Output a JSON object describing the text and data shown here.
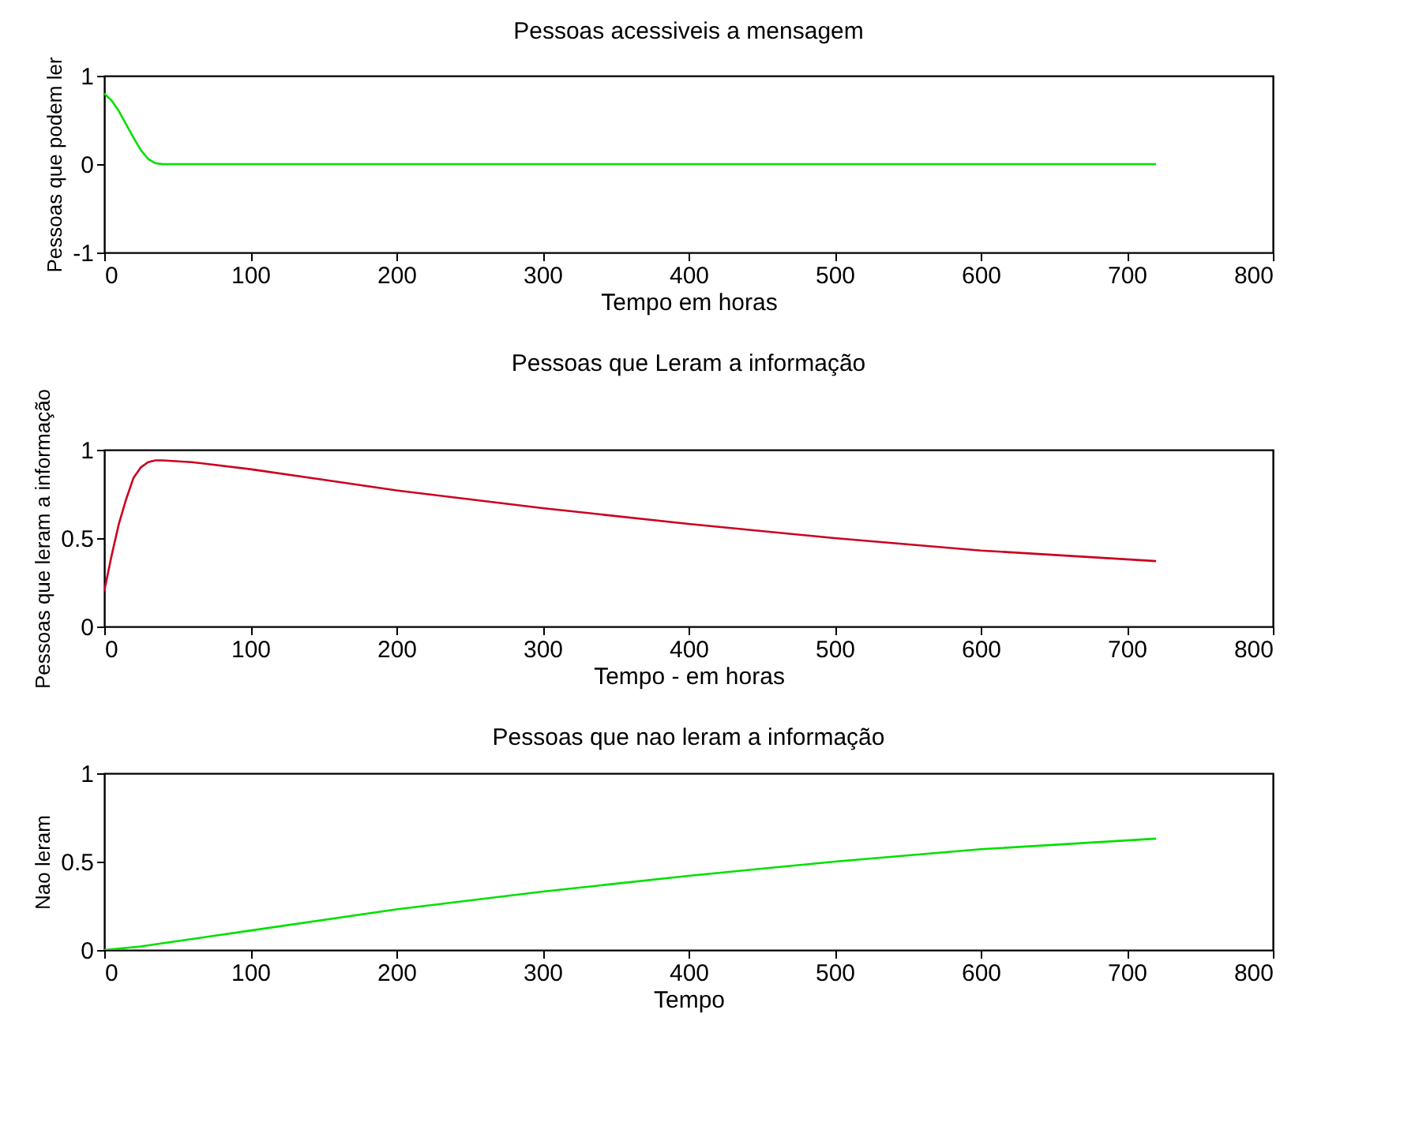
{
  "chart_data": [
    {
      "type": "line",
      "title": "Pessoas acessiveis a mensagem",
      "xlabel": "Tempo em horas",
      "ylabel": "Pessoas que podem ler",
      "xlim": [
        0,
        800
      ],
      "xticks": [
        0,
        100,
        200,
        300,
        400,
        500,
        600,
        700,
        800
      ],
      "ylim": [
        -1,
        1
      ],
      "yticks": [
        -1,
        0,
        1
      ],
      "grid": false,
      "series": [
        {
          "color": "#00e000",
          "x": [
            0,
            5,
            10,
            15,
            20,
            25,
            30,
            35,
            40,
            100,
            200,
            300,
            400,
            500,
            600,
            720
          ],
          "values": [
            0.8,
            0.72,
            0.6,
            0.45,
            0.3,
            0.16,
            0.06,
            0.01,
            0,
            0,
            0,
            0,
            0,
            0,
            0,
            0
          ]
        }
      ]
    },
    {
      "type": "line",
      "title": "Pessoas que Leram a informação",
      "xlabel": "Tempo - em horas",
      "ylabel": "Pessoas que leram a informação",
      "xlim": [
        0,
        800
      ],
      "xticks": [
        0,
        100,
        200,
        300,
        400,
        500,
        600,
        700,
        800
      ],
      "ylim": [
        0,
        1
      ],
      "yticks": [
        0,
        0.5,
        1
      ],
      "grid": false,
      "series": [
        {
          "color": "#cc0020",
          "x": [
            0,
            5,
            10,
            15,
            20,
            25,
            30,
            35,
            40,
            60,
            100,
            150,
            200,
            300,
            400,
            500,
            600,
            720
          ],
          "values": [
            0.2,
            0.4,
            0.58,
            0.72,
            0.84,
            0.9,
            0.93,
            0.94,
            0.94,
            0.93,
            0.89,
            0.83,
            0.77,
            0.67,
            0.58,
            0.5,
            0.43,
            0.37
          ]
        }
      ]
    },
    {
      "type": "line",
      "title": "Pessoas que nao leram a informação",
      "xlabel": "Tempo",
      "ylabel": "Nao leram",
      "xlim": [
        0,
        800
      ],
      "xticks": [
        0,
        100,
        200,
        300,
        400,
        500,
        600,
        700,
        800
      ],
      "ylim": [
        0,
        1
      ],
      "yticks": [
        0,
        0.5,
        1
      ],
      "grid": false,
      "series": [
        {
          "color": "#00e000",
          "x": [
            0,
            25,
            50,
            100,
            200,
            300,
            400,
            500,
            600,
            720
          ],
          "values": [
            0,
            0.02,
            0.05,
            0.11,
            0.23,
            0.33,
            0.42,
            0.5,
            0.57,
            0.63
          ]
        }
      ]
    }
  ]
}
